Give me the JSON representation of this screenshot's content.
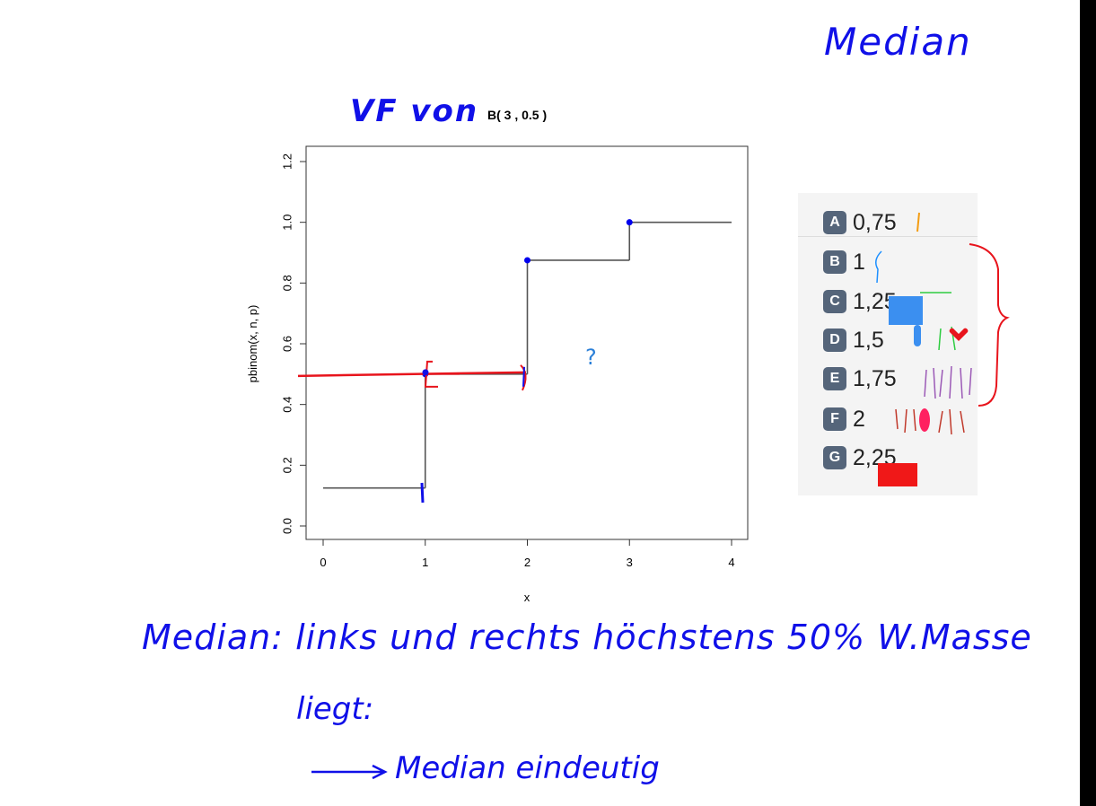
{
  "handwriting": {
    "title": "Median",
    "subtitle": "VF von",
    "question_mark": "?",
    "note_line1": "Median: links und rechts höchstens 50% W.Masse",
    "note_line2": "liegt:",
    "note_line3": "Median eindeutig"
  },
  "poll": {
    "options": [
      {
        "letter": "A",
        "value": "0,75"
      },
      {
        "letter": "B",
        "value": "1"
      },
      {
        "letter": "C",
        "value": "1,25"
      },
      {
        "letter": "D",
        "value": "1,5"
      },
      {
        "letter": "E",
        "value": "1,75"
      },
      {
        "letter": "F",
        "value": "2"
      },
      {
        "letter": "G",
        "value": "2,25"
      }
    ],
    "badge_color": "#55657a"
  },
  "colors": {
    "ink_blue": "#1010e8",
    "ink_red": "#e8141c",
    "step_line": "#555555",
    "point": "#0000ee"
  },
  "chart_data": {
    "type": "line",
    "title": "B( 3 , 0.5 )",
    "xlabel": "x",
    "ylabel": "pbinom(x, n, p)",
    "xlim": [
      0,
      4
    ],
    "ylim": [
      0,
      1.2
    ],
    "x_ticks": [
      "0",
      "1",
      "2",
      "3",
      "4"
    ],
    "y_ticks": [
      "0.0",
      "0.2",
      "0.4",
      "0.6",
      "0.8",
      "1.0",
      "1.2"
    ],
    "x_tick_values": [
      0,
      1,
      2,
      3,
      4
    ],
    "y_tick_values": [
      0,
      0.2,
      0.4,
      0.6,
      0.8,
      1.0,
      1.2
    ],
    "steps": [
      {
        "x0": 0,
        "x1": 1,
        "y": 0.125
      },
      {
        "x0": 1,
        "x1": 2,
        "y": 0.5
      },
      {
        "x0": 2,
        "x1": 3,
        "y": 0.875
      },
      {
        "x0": 3,
        "x1": 4,
        "y": 1.0
      }
    ],
    "points": [
      {
        "x": 1,
        "y": 0.5
      },
      {
        "x": 2,
        "y": 0.875
      },
      {
        "x": 3,
        "y": 1.0
      }
    ],
    "annotation_line_y": 0.5,
    "grid": false
  }
}
